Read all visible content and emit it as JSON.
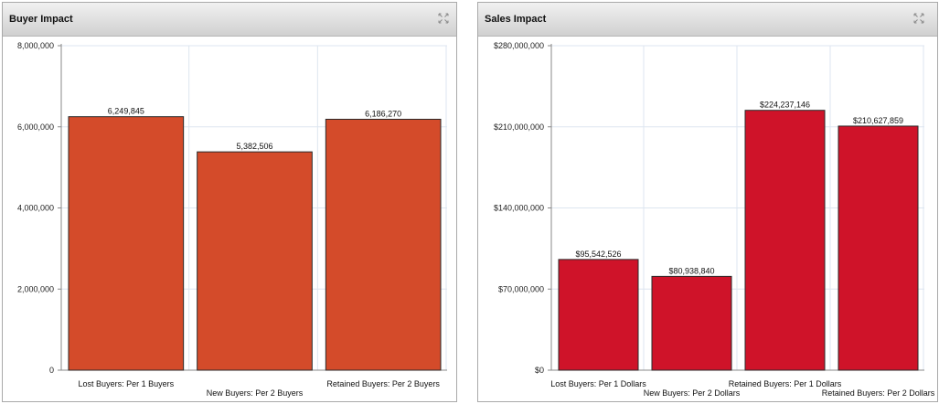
{
  "panels": [
    {
      "title": "Buyer Impact"
    },
    {
      "title": "Sales Impact"
    }
  ],
  "chart_data": [
    {
      "type": "bar",
      "title": "Buyer Impact",
      "categories": [
        "Lost Buyers: Per 1 Buyers",
        "New Buyers: Per 2 Buyers",
        "Retained Buyers: Per 2 Buyers"
      ],
      "values": [
        6249845,
        5382506,
        6186270
      ],
      "data_labels": [
        "6,249,845",
        "5,382,506",
        "6,186,270"
      ],
      "ylim": [
        0,
        8000000
      ],
      "yticks": [
        0,
        2000000,
        4000000,
        6000000,
        8000000
      ],
      "ytick_labels": [
        "0",
        "2,000,000",
        "4,000,000",
        "6,000,000",
        "8,000,000"
      ],
      "bar_color": "#d44b2a",
      "grid": true,
      "xlabel": "",
      "ylabel": ""
    },
    {
      "type": "bar",
      "title": "Sales Impact",
      "categories": [
        "Lost Buyers: Per 1 Dollars",
        "New Buyers: Per 2 Dollars",
        "Retained Buyers: Per 1 Dollars",
        "Retained Buyers: Per 2 Dollars"
      ],
      "values": [
        95542526,
        80938840,
        224237146,
        210627859
      ],
      "data_labels": [
        "$95,542,526",
        "$80,938,840",
        "$224,237,146",
        "$210,627,859"
      ],
      "ylim": [
        0,
        280000000
      ],
      "yticks": [
        0,
        70000000,
        140000000,
        210000000,
        280000000
      ],
      "ytick_labels": [
        "$0",
        "$70,000,000",
        "$140,000,000",
        "$210,000,000",
        "$280,000,000"
      ],
      "bar_color": "#cf1329",
      "grid": true,
      "xlabel": "",
      "ylabel": ""
    }
  ]
}
